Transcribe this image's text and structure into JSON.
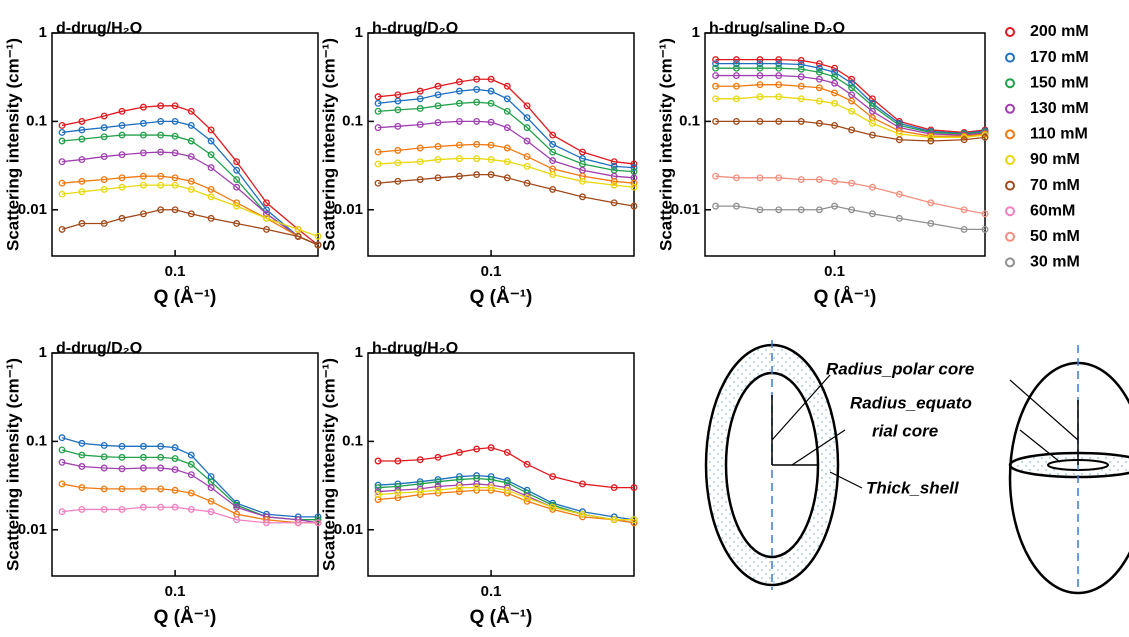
{
  "chart_data": [
    {
      "type": "scatter",
      "title": "d-drug/H₂O",
      "xlabel": "Q (Å⁻¹)",
      "ylabel": "Scattering intensity (cm⁻¹)",
      "xscale": "log",
      "yscale": "log",
      "xlim": [
        0.025,
        0.5
      ],
      "ylim": [
        0.003,
        1
      ],
      "xticks": [
        0.1
      ],
      "yticks": [
        0.01,
        0.1,
        1
      ],
      "x": [
        0.028,
        0.035,
        0.045,
        0.055,
        0.07,
        0.085,
        0.1,
        0.12,
        0.15,
        0.2,
        0.28,
        0.4,
        0.5
      ],
      "series": [
        {
          "name": "200 mM",
          "color": "#e0191f",
          "values": [
            0.09,
            0.1,
            0.115,
            0.13,
            0.145,
            0.15,
            0.15,
            0.13,
            0.08,
            0.035,
            0.012,
            0.006,
            0.004
          ]
        },
        {
          "name": "170 mM",
          "color": "#1f6fc0",
          "values": [
            0.075,
            0.08,
            0.085,
            0.09,
            0.095,
            0.1,
            0.1,
            0.09,
            0.06,
            0.028,
            0.01,
            0.005,
            0.004
          ]
        },
        {
          "name": "150 mM",
          "color": "#22a04a",
          "values": [
            0.06,
            0.063,
            0.067,
            0.07,
            0.07,
            0.07,
            0.068,
            0.06,
            0.042,
            0.022,
            0.009,
            0.005,
            0.004
          ]
        },
        {
          "name": "130 mM",
          "color": "#a040b0",
          "values": [
            0.035,
            0.037,
            0.04,
            0.042,
            0.044,
            0.045,
            0.044,
            0.04,
            0.03,
            0.018,
            0.009,
            0.005,
            0.004
          ]
        },
        {
          "name": "110 mM",
          "color": "#f07a10",
          "values": [
            0.02,
            0.021,
            0.022,
            0.023,
            0.024,
            0.024,
            0.023,
            0.021,
            0.017,
            0.012,
            0.008,
            0.005,
            0.004
          ]
        },
        {
          "name": "90 mM",
          "color": "#e8d80c",
          "values": [
            0.015,
            0.016,
            0.017,
            0.018,
            0.019,
            0.019,
            0.019,
            0.017,
            0.014,
            0.011,
            0.008,
            0.006,
            0.005
          ]
        },
        {
          "name": "70 mM",
          "color": "#a04a1a",
          "values": [
            0.006,
            0.007,
            0.007,
            0.008,
            0.009,
            0.01,
            0.01,
            0.009,
            0.008,
            0.007,
            0.006,
            0.005,
            0.004
          ]
        }
      ]
    },
    {
      "type": "scatter",
      "title": "h-drug/D₂O",
      "xlabel": "Q (Å⁻¹)",
      "ylabel": "Scattering intensity (cm⁻¹)",
      "xscale": "log",
      "yscale": "log",
      "xlim": [
        0.025,
        0.5
      ],
      "ylim": [
        0.003,
        1
      ],
      "xticks": [
        0.1
      ],
      "yticks": [
        0.01,
        0.1,
        1
      ],
      "x": [
        0.028,
        0.035,
        0.045,
        0.055,
        0.07,
        0.085,
        0.1,
        0.12,
        0.15,
        0.2,
        0.28,
        0.4,
        0.5
      ],
      "series": [
        {
          "name": "200 mM",
          "color": "#e0191f",
          "values": [
            0.19,
            0.2,
            0.22,
            0.25,
            0.28,
            0.3,
            0.3,
            0.25,
            0.15,
            0.07,
            0.045,
            0.035,
            0.033
          ]
        },
        {
          "name": "170 mM",
          "color": "#1f6fc0",
          "values": [
            0.16,
            0.17,
            0.18,
            0.2,
            0.22,
            0.23,
            0.22,
            0.18,
            0.11,
            0.055,
            0.038,
            0.031,
            0.03
          ]
        },
        {
          "name": "150 mM",
          "color": "#22a04a",
          "values": [
            0.13,
            0.135,
            0.14,
            0.15,
            0.16,
            0.165,
            0.16,
            0.13,
            0.085,
            0.045,
            0.033,
            0.028,
            0.027
          ]
        },
        {
          "name": "130 mM",
          "color": "#a040b0",
          "values": [
            0.085,
            0.088,
            0.092,
            0.097,
            0.1,
            0.1,
            0.098,
            0.085,
            0.06,
            0.036,
            0.028,
            0.024,
            0.023
          ]
        },
        {
          "name": "110 mM",
          "color": "#f07a10",
          "values": [
            0.045,
            0.047,
            0.05,
            0.052,
            0.054,
            0.055,
            0.054,
            0.05,
            0.04,
            0.029,
            0.024,
            0.021,
            0.02
          ]
        },
        {
          "name": "90 mM",
          "color": "#e8d80c",
          "values": [
            0.033,
            0.034,
            0.035,
            0.037,
            0.038,
            0.038,
            0.037,
            0.035,
            0.031,
            0.025,
            0.021,
            0.019,
            0.018
          ]
        },
        {
          "name": "70 mM",
          "color": "#a04a1a",
          "values": [
            0.02,
            0.021,
            0.022,
            0.023,
            0.024,
            0.025,
            0.025,
            0.023,
            0.02,
            0.017,
            0.014,
            0.012,
            0.011
          ]
        }
      ]
    },
    {
      "type": "scatter",
      "title": "h-drug/saline D₂O",
      "xlabel": "Q (Å⁻¹)",
      "ylabel": "Scattering intensity (cm⁻¹)",
      "xscale": "log",
      "yscale": "log",
      "xlim": [
        0.025,
        0.5
      ],
      "ylim": [
        0.003,
        1
      ],
      "xticks": [
        0.1
      ],
      "yticks": [
        0.01,
        0.1,
        1
      ],
      "x": [
        0.028,
        0.035,
        0.045,
        0.055,
        0.07,
        0.085,
        0.1,
        0.12,
        0.15,
        0.2,
        0.28,
        0.4,
        0.5
      ],
      "series": [
        {
          "name": "200 mM",
          "color": "#e0191f",
          "values": [
            0.5,
            0.5,
            0.5,
            0.5,
            0.49,
            0.45,
            0.4,
            0.3,
            0.18,
            0.1,
            0.08,
            0.075,
            0.08
          ]
        },
        {
          "name": "170 mM",
          "color": "#1f6fc0",
          "values": [
            0.45,
            0.45,
            0.45,
            0.45,
            0.44,
            0.4,
            0.36,
            0.27,
            0.16,
            0.095,
            0.077,
            0.073,
            0.078
          ]
        },
        {
          "name": "150 mM",
          "color": "#22a04a",
          "values": [
            0.4,
            0.4,
            0.4,
            0.4,
            0.39,
            0.36,
            0.32,
            0.24,
            0.15,
            0.09,
            0.075,
            0.072,
            0.076
          ]
        },
        {
          "name": "130 mM",
          "color": "#a040b0",
          "values": [
            0.33,
            0.33,
            0.33,
            0.33,
            0.32,
            0.3,
            0.27,
            0.2,
            0.13,
            0.085,
            0.072,
            0.07,
            0.074
          ]
        },
        {
          "name": "110 mM",
          "color": "#f07a10",
          "values": [
            0.25,
            0.25,
            0.26,
            0.26,
            0.25,
            0.24,
            0.21,
            0.17,
            0.11,
            0.078,
            0.068,
            0.068,
            0.072
          ]
        },
        {
          "name": "90 mM",
          "color": "#e8d80c",
          "values": [
            0.18,
            0.18,
            0.19,
            0.19,
            0.18,
            0.17,
            0.16,
            0.13,
            0.095,
            0.072,
            0.066,
            0.066,
            0.07
          ]
        },
        {
          "name": "70 mM",
          "color": "#a04a1a",
          "values": [
            0.1,
            0.1,
            0.1,
            0.1,
            0.1,
            0.095,
            0.09,
            0.08,
            0.07,
            0.062,
            0.06,
            0.062,
            0.066
          ]
        },
        {
          "name": "50 mM",
          "color": "#f09080",
          "values": [
            0.024,
            0.023,
            0.023,
            0.023,
            0.022,
            0.022,
            0.021,
            0.02,
            0.018,
            0.015,
            0.012,
            0.01,
            0.009
          ]
        },
        {
          "name": "30 mM",
          "color": "#909090",
          "values": [
            0.011,
            0.011,
            0.01,
            0.01,
            0.01,
            0.01,
            0.011,
            0.01,
            0.009,
            0.008,
            0.007,
            0.006,
            0.006
          ]
        }
      ]
    },
    {
      "type": "scatter",
      "title": "d-drug/D₂O",
      "xlabel": "Q (Å⁻¹)",
      "ylabel": "Scattering intensity (cm⁻¹)",
      "xscale": "log",
      "yscale": "log",
      "xlim": [
        0.025,
        0.5
      ],
      "ylim": [
        0.003,
        1
      ],
      "xticks": [
        0.1
      ],
      "yticks": [
        0.01,
        0.1,
        1
      ],
      "x": [
        0.028,
        0.035,
        0.045,
        0.055,
        0.07,
        0.085,
        0.1,
        0.12,
        0.15,
        0.2,
        0.28,
        0.4,
        0.5
      ],
      "series": [
        {
          "name": "170 mM",
          "color": "#1f6fc0",
          "values": [
            0.11,
            0.095,
            0.09,
            0.088,
            0.088,
            0.088,
            0.085,
            0.07,
            0.04,
            0.02,
            0.015,
            0.014,
            0.014
          ]
        },
        {
          "name": "150 mM",
          "color": "#22a04a",
          "values": [
            0.08,
            0.07,
            0.067,
            0.066,
            0.066,
            0.066,
            0.064,
            0.055,
            0.035,
            0.019,
            0.014,
            0.013,
            0.013
          ]
        },
        {
          "name": "130 mM",
          "color": "#a040b0",
          "values": [
            0.058,
            0.052,
            0.05,
            0.049,
            0.05,
            0.05,
            0.048,
            0.042,
            0.03,
            0.018,
            0.014,
            0.013,
            0.012
          ]
        },
        {
          "name": "110 mM",
          "color": "#f07a10",
          "values": [
            0.033,
            0.03,
            0.029,
            0.029,
            0.029,
            0.029,
            0.028,
            0.026,
            0.021,
            0.015,
            0.013,
            0.012,
            0.012
          ]
        },
        {
          "name": "60mM",
          "color": "#f080c0",
          "values": [
            0.016,
            0.017,
            0.017,
            0.017,
            0.018,
            0.018,
            0.018,
            0.017,
            0.016,
            0.013,
            0.012,
            0.012,
            0.012
          ]
        }
      ]
    },
    {
      "type": "scatter",
      "title": "h-drug/H₂O",
      "xlabel": "Q (Å⁻¹)",
      "ylabel": "Scattering intensity (cm⁻¹)",
      "xscale": "log",
      "yscale": "log",
      "xlim": [
        0.025,
        0.5
      ],
      "ylim": [
        0.003,
        1
      ],
      "xticks": [
        0.1
      ],
      "yticks": [
        0.01,
        0.1,
        1
      ],
      "x": [
        0.028,
        0.035,
        0.045,
        0.055,
        0.07,
        0.085,
        0.1,
        0.12,
        0.15,
        0.2,
        0.28,
        0.4,
        0.5
      ],
      "series": [
        {
          "name": "200 mM",
          "color": "#e0191f",
          "values": [
            0.06,
            0.06,
            0.062,
            0.066,
            0.075,
            0.082,
            0.085,
            0.075,
            0.055,
            0.04,
            0.033,
            0.03,
            0.03
          ]
        },
        {
          "name": "170 mM",
          "color": "#1f6fc0",
          "values": [
            0.032,
            0.033,
            0.035,
            0.037,
            0.04,
            0.041,
            0.04,
            0.036,
            0.028,
            0.02,
            0.016,
            0.014,
            0.013
          ]
        },
        {
          "name": "150 mM",
          "color": "#22a04a",
          "values": [
            0.03,
            0.031,
            0.033,
            0.035,
            0.037,
            0.038,
            0.037,
            0.034,
            0.026,
            0.019,
            0.015,
            0.013,
            0.013
          ]
        },
        {
          "name": "130 mM",
          "color": "#a040b0",
          "values": [
            0.027,
            0.028,
            0.029,
            0.031,
            0.032,
            0.033,
            0.032,
            0.03,
            0.024,
            0.018,
            0.015,
            0.013,
            0.012
          ]
        },
        {
          "name": "110 mM",
          "color": "#f07a10",
          "values": [
            0.022,
            0.023,
            0.025,
            0.026,
            0.027,
            0.028,
            0.028,
            0.026,
            0.021,
            0.017,
            0.014,
            0.013,
            0.012
          ]
        },
        {
          "name": "90 mM",
          "color": "#e8d80c",
          "values": [
            0.025,
            0.026,
            0.027,
            0.028,
            0.03,
            0.03,
            0.03,
            0.028,
            0.023,
            0.018,
            0.015,
            0.013,
            0.013
          ]
        }
      ]
    }
  ],
  "legend": {
    "items": [
      {
        "name": "200 mM",
        "color": "#e0191f"
      },
      {
        "name": "170 mM",
        "color": "#1f6fc0"
      },
      {
        "name": "150 mM",
        "color": "#22a04a"
      },
      {
        "name": "130 mM",
        "color": "#a040b0"
      },
      {
        "name": "110 mM",
        "color": "#f07a10"
      },
      {
        "name": "90 mM",
        "color": "#e8d80c"
      },
      {
        "name": "70 mM",
        "color": "#a04a1a"
      },
      {
        "name": "60mM",
        "color": "#f080c0"
      },
      {
        "name": "50 mM",
        "color": "#f09080"
      },
      {
        "name": "30 mM",
        "color": "#909090"
      }
    ]
  },
  "diagram": {
    "labels": [
      "Radius_polar  core",
      "Radius_equato",
      "rial core",
      "Thick_shell"
    ]
  }
}
